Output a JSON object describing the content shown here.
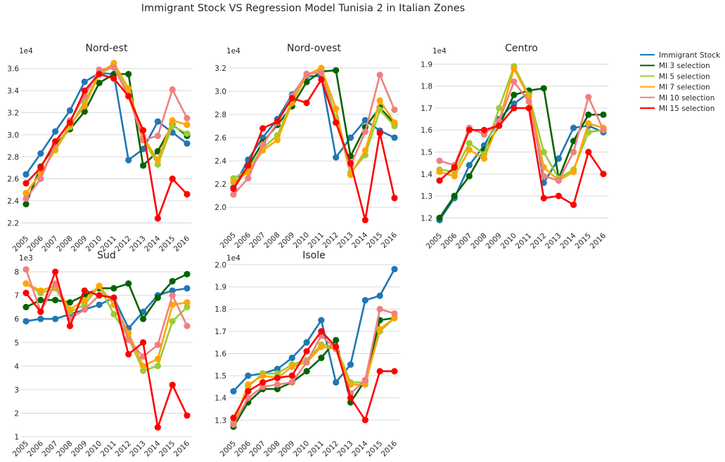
{
  "figure_title": "Immigrant Stock VS Regression Model Tunisia 2 in Italian Zones",
  "colors": {
    "Immigrant Stock": "#1f77b4",
    "MI 3 selection": "#006400",
    "MI 5 selection": "#9acd32",
    "MI 7 selection": "#ffa500",
    "MI 10 selection": "#f08080",
    "MI 15 selection": "#ff0000"
  },
  "legend": [
    "Immigrant Stock",
    "MI 3 selection",
    "MI 5 selection",
    "MI 7 selection",
    "MI 10 selection",
    "MI 15 selection"
  ],
  "chart_data": [
    {
      "type": "line",
      "title": "Nord-est",
      "offset_text": "1e4",
      "x": [
        "2005",
        "2006",
        "2007",
        "2008",
        "2009",
        "2010",
        "2011",
        "2012",
        "2013",
        "2014",
        "2015",
        "2016"
      ],
      "yticks": [
        2.2,
        2.4,
        2.6,
        2.8,
        3.0,
        3.2,
        3.4,
        3.6
      ],
      "ytick_labels": [
        "2.2",
        "2.4",
        "2.6",
        "2.8",
        "3.0",
        "3.2",
        "3.4",
        "3.6"
      ],
      "ylim": [
        2.12,
        3.7
      ],
      "series": [
        {
          "name": "Immigrant Stock",
          "values": [
            2.64,
            2.83,
            3.03,
            3.22,
            3.48,
            3.56,
            3.55,
            2.77,
            2.87,
            3.12,
            3.02,
            2.92
          ]
        },
        {
          "name": "MI 3 selection",
          "values": [
            2.37,
            2.71,
            2.91,
            3.05,
            3.21,
            3.47,
            3.55,
            3.55,
            2.72,
            2.85,
            3.09,
            2.99
          ]
        },
        {
          "name": "MI 5 selection",
          "values": [
            2.47,
            2.65,
            2.86,
            3.07,
            3.3,
            3.55,
            3.62,
            3.38,
            2.96,
            2.73,
            3.08,
            3.01
          ]
        },
        {
          "name": "MI 7 selection",
          "values": [
            2.47,
            2.65,
            2.87,
            3.09,
            3.26,
            3.55,
            3.65,
            3.42,
            2.98,
            2.77,
            3.13,
            3.09
          ]
        },
        {
          "name": "MI 10 selection",
          "values": [
            2.42,
            2.6,
            2.92,
            3.13,
            3.35,
            3.59,
            3.61,
            3.35,
            2.95,
            2.99,
            3.41,
            3.15
          ]
        },
        {
          "name": "MI 15 selection",
          "values": [
            2.56,
            2.7,
            2.94,
            3.11,
            3.4,
            3.55,
            3.51,
            3.35,
            3.04,
            2.24,
            2.6,
            2.46
          ]
        }
      ]
    },
    {
      "type": "line",
      "title": "Nord-ovest",
      "offset_text": "1e4",
      "x": [
        "2005",
        "2006",
        "2007",
        "2008",
        "2009",
        "2010",
        "2011",
        "2012",
        "2013",
        "2014",
        "2015",
        "2016"
      ],
      "yticks": [
        2.0,
        2.2,
        2.4,
        2.6,
        2.8,
        3.0,
        3.2
      ],
      "ytick_labels": [
        "2.0",
        "2.2",
        "2.4",
        "2.6",
        "2.8",
        "3.0",
        "3.2"
      ],
      "ylim": [
        1.82,
        3.29
      ],
      "series": [
        {
          "name": "Immigrant Stock",
          "values": [
            2.17,
            2.41,
            2.6,
            2.76,
            2.97,
            3.13,
            3.13,
            2.43,
            2.6,
            2.75,
            2.66,
            2.6
          ]
        },
        {
          "name": "MI 3 selection",
          "values": [
            2.16,
            2.35,
            2.56,
            2.71,
            2.87,
            3.08,
            3.17,
            3.18,
            2.44,
            2.69,
            2.86,
            2.72
          ]
        },
        {
          "name": "MI 5 selection",
          "values": [
            2.25,
            2.32,
            2.51,
            2.62,
            2.92,
            3.14,
            3.19,
            2.77,
            2.3,
            2.45,
            2.84,
            2.7
          ]
        },
        {
          "name": "MI 7 selection",
          "values": [
            2.22,
            2.3,
            2.49,
            2.58,
            2.9,
            3.14,
            3.2,
            2.85,
            2.28,
            2.49,
            2.92,
            2.73
          ]
        },
        {
          "name": "MI 10 selection",
          "values": [
            2.11,
            2.25,
            2.54,
            2.73,
            2.96,
            3.15,
            3.16,
            2.73,
            2.36,
            2.65,
            3.14,
            2.84
          ]
        },
        {
          "name": "MI 15 selection",
          "values": [
            2.16,
            2.36,
            2.68,
            2.74,
            2.94,
            2.9,
            3.1,
            2.73,
            2.38,
            1.89,
            2.64,
            2.08
          ]
        }
      ]
    },
    {
      "type": "line",
      "title": "Centro",
      "offset_text": "1e4",
      "x": [
        "2005",
        "2006",
        "2007",
        "2008",
        "2009",
        "2010",
        "2011",
        "2012",
        "2013",
        "2014",
        "2015",
        "2016"
      ],
      "yticks": [
        1.2,
        1.3,
        1.4,
        1.5,
        1.6,
        1.7,
        1.8,
        1.9
      ],
      "ytick_labels": [
        "1.2",
        "1.3",
        "1.4",
        "1.5",
        "1.6",
        "1.7",
        "1.8",
        "1.9"
      ],
      "ylim": [
        1.15,
        1.93
      ],
      "series": [
        {
          "name": "Immigrant Stock",
          "values": [
            1.19,
            1.29,
            1.44,
            1.53,
            1.65,
            1.72,
            1.77,
            1.36,
            1.47,
            1.61,
            1.62,
            1.59
          ]
        },
        {
          "name": "MI 3 selection",
          "values": [
            1.2,
            1.3,
            1.39,
            1.51,
            1.62,
            1.76,
            1.78,
            1.79,
            1.38,
            1.55,
            1.67,
            1.67
          ]
        },
        {
          "name": "MI 5 selection",
          "values": [
            1.42,
            1.41,
            1.54,
            1.49,
            1.7,
            1.89,
            1.76,
            1.5,
            1.38,
            1.42,
            1.59,
            1.6
          ]
        },
        {
          "name": "MI 7 selection",
          "values": [
            1.41,
            1.39,
            1.51,
            1.47,
            1.64,
            1.88,
            1.75,
            1.43,
            1.37,
            1.41,
            1.63,
            1.61
          ]
        },
        {
          "name": "MI 10 selection",
          "values": [
            1.46,
            1.44,
            1.61,
            1.58,
            1.64,
            1.82,
            1.73,
            1.39,
            1.37,
            1.5,
            1.75,
            1.6
          ]
        },
        {
          "name": "MI 15 selection",
          "values": [
            1.37,
            1.43,
            1.6,
            1.6,
            1.62,
            1.7,
            1.7,
            1.29,
            1.3,
            1.26,
            1.5,
            1.4
          ]
        }
      ]
    },
    {
      "type": "line",
      "title": "Sud",
      "offset_text": "1e3",
      "x": [
        "2005",
        "2006",
        "2007",
        "2008",
        "2009",
        "2010",
        "2011",
        "2012",
        "2013",
        "2014",
        "2015",
        "2016"
      ],
      "yticks": [
        1,
        2,
        3,
        4,
        5,
        6,
        7,
        8
      ],
      "ytick_labels": [
        "1",
        "2",
        "3",
        "4",
        "5",
        "6",
        "7",
        "8"
      ],
      "ylim": [
        1.0,
        8.3
      ],
      "series": [
        {
          "name": "Immigrant Stock",
          "values": [
            5.9,
            6.0,
            6.0,
            6.2,
            6.4,
            6.6,
            6.9,
            5.6,
            6.3,
            7.0,
            7.2,
            7.3
          ]
        },
        {
          "name": "MI 3 selection",
          "values": [
            6.5,
            6.8,
            6.8,
            6.7,
            7.0,
            7.3,
            7.3,
            7.5,
            6.0,
            6.9,
            7.6,
            7.9
          ]
        },
        {
          "name": "MI 5 selection",
          "values": [
            7.5,
            7.1,
            7.3,
            6.3,
            6.6,
            7.4,
            6.2,
            5.2,
            3.8,
            4.0,
            5.9,
            6.5
          ]
        },
        {
          "name": "MI 7 selection",
          "values": [
            7.5,
            7.2,
            7.4,
            6.4,
            6.8,
            7.4,
            6.6,
            5.4,
            4.0,
            4.3,
            6.6,
            6.7
          ]
        },
        {
          "name": "MI 10 selection",
          "values": [
            8.1,
            6.3,
            7.5,
            6.0,
            6.4,
            7.0,
            6.9,
            5.1,
            4.4,
            4.9,
            7.0,
            5.7
          ]
        },
        {
          "name": "MI 15 selection",
          "values": [
            7.1,
            6.3,
            8.0,
            5.7,
            7.2,
            7.0,
            6.9,
            4.5,
            5.0,
            1.4,
            3.2,
            1.9
          ]
        }
      ]
    },
    {
      "type": "line",
      "title": "Isole",
      "offset_text": "1e4",
      "x": [
        "2005",
        "2006",
        "2007",
        "2008",
        "2009",
        "2010",
        "2011",
        "2012",
        "2013",
        "2014",
        "2015",
        "2016"
      ],
      "yticks": [
        1.3,
        1.4,
        1.5,
        1.6,
        1.7,
        1.8,
        1.9,
        2.0
      ],
      "ytick_labels": [
        "1.3",
        "1.4",
        "1.5",
        "1.6",
        "1.7",
        "1.8",
        "1.9",
        "2.0"
      ],
      "ylim": [
        1.225,
        2.0
      ],
      "series": [
        {
          "name": "Immigrant Stock",
          "values": [
            1.43,
            1.5,
            1.51,
            1.53,
            1.58,
            1.65,
            1.75,
            1.47,
            1.55,
            1.84,
            1.86,
            1.98
          ]
        },
        {
          "name": "MI 3 selection",
          "values": [
            1.27,
            1.38,
            1.44,
            1.44,
            1.47,
            1.52,
            1.58,
            1.66,
            1.38,
            1.48,
            1.75,
            1.76
          ]
        },
        {
          "name": "MI 5 selection",
          "values": [
            1.29,
            1.45,
            1.51,
            1.51,
            1.55,
            1.57,
            1.64,
            1.63,
            1.47,
            1.47,
            1.7,
            1.76
          ]
        },
        {
          "name": "MI 7 selection",
          "values": [
            1.28,
            1.46,
            1.5,
            1.49,
            1.54,
            1.56,
            1.63,
            1.62,
            1.46,
            1.46,
            1.71,
            1.76
          ]
        },
        {
          "name": "MI 10 selection",
          "values": [
            1.28,
            1.4,
            1.45,
            1.46,
            1.47,
            1.56,
            1.68,
            1.62,
            1.42,
            1.48,
            1.8,
            1.78
          ]
        },
        {
          "name": "MI 15 selection",
          "values": [
            1.31,
            1.43,
            1.47,
            1.49,
            1.5,
            1.61,
            1.7,
            1.63,
            1.4,
            1.3,
            1.52,
            1.52
          ]
        }
      ]
    }
  ]
}
